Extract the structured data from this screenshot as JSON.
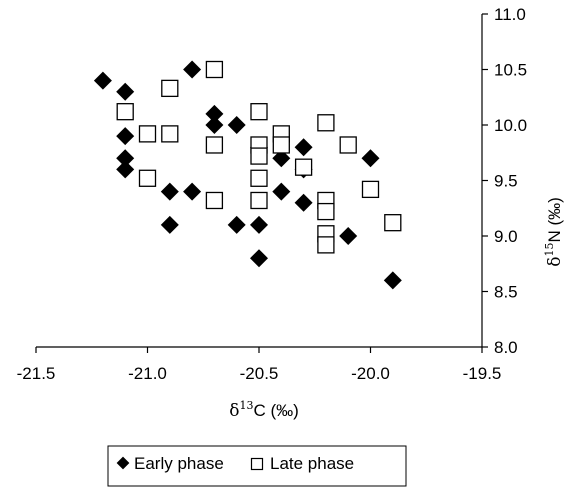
{
  "chart_data": {
    "type": "scatter",
    "xlabel": {
      "prefix": "δ",
      "sup": "13",
      "rest": "C (‰)"
    },
    "ylabel": {
      "prefix": "δ",
      "sup": "15",
      "rest": "N (‰)"
    },
    "xlim": [
      -21.5,
      -19.5
    ],
    "ylim": [
      8.0,
      11.0
    ],
    "x_ticks": [
      "-21.5",
      "-21.0",
      "-20.5",
      "-20.0",
      "-19.5"
    ],
    "x_tick_values": [
      -21.5,
      -21.0,
      -20.5,
      -20.0,
      -19.5
    ],
    "y_ticks": [
      "8.0",
      "8.5",
      "9.0",
      "9.5",
      "10.0",
      "10.5",
      "11.0"
    ],
    "y_tick_values": [
      8.0,
      8.5,
      9.0,
      9.5,
      10.0,
      10.5,
      11.0
    ],
    "y_axis_position": "right",
    "grid": false,
    "legend_position": "bottom",
    "series": [
      {
        "name": "Early phase",
        "marker": "filled-diamond",
        "color": "#000000",
        "points": [
          [
            -21.2,
            10.4
          ],
          [
            -21.1,
            10.3
          ],
          [
            -20.8,
            10.5
          ],
          [
            -21.1,
            9.9
          ],
          [
            -21.1,
            9.7
          ],
          [
            -21.1,
            9.6
          ],
          [
            -20.7,
            10.1
          ],
          [
            -20.7,
            10.0
          ],
          [
            -20.6,
            10.0
          ],
          [
            -20.9,
            9.4
          ],
          [
            -20.8,
            9.4
          ],
          [
            -20.9,
            9.1
          ],
          [
            -20.6,
            9.1
          ],
          [
            -20.5,
            9.1
          ],
          [
            -20.5,
            8.8
          ],
          [
            -20.5,
            9.8
          ],
          [
            -20.4,
            9.7
          ],
          [
            -20.4,
            9.4
          ],
          [
            -20.3,
            9.8
          ],
          [
            -20.3,
            9.6
          ],
          [
            -20.3,
            9.3
          ],
          [
            -20.0,
            9.7
          ],
          [
            -20.1,
            9.0
          ],
          [
            -19.9,
            8.6
          ]
        ]
      },
      {
        "name": "Late phase",
        "marker": "open-square",
        "color": "#000000",
        "points": [
          [
            -20.7,
            10.5
          ],
          [
            -20.9,
            10.33
          ],
          [
            -21.1,
            10.12
          ],
          [
            -21.0,
            9.92
          ],
          [
            -20.9,
            9.92
          ],
          [
            -20.7,
            9.82
          ],
          [
            -21.0,
            9.52
          ],
          [
            -20.7,
            9.32
          ],
          [
            -20.5,
            10.12
          ],
          [
            -20.5,
            9.82
          ],
          [
            -20.5,
            9.72
          ],
          [
            -20.5,
            9.52
          ],
          [
            -20.5,
            9.32
          ],
          [
            -20.4,
            9.92
          ],
          [
            -20.4,
            9.82
          ],
          [
            -20.3,
            9.62
          ],
          [
            -20.2,
            10.02
          ],
          [
            -20.2,
            9.32
          ],
          [
            -20.2,
            9.22
          ],
          [
            -20.2,
            9.02
          ],
          [
            -20.2,
            8.92
          ],
          [
            -20.1,
            9.82
          ],
          [
            -20.0,
            9.42
          ],
          [
            -19.9,
            9.12
          ]
        ]
      }
    ]
  }
}
